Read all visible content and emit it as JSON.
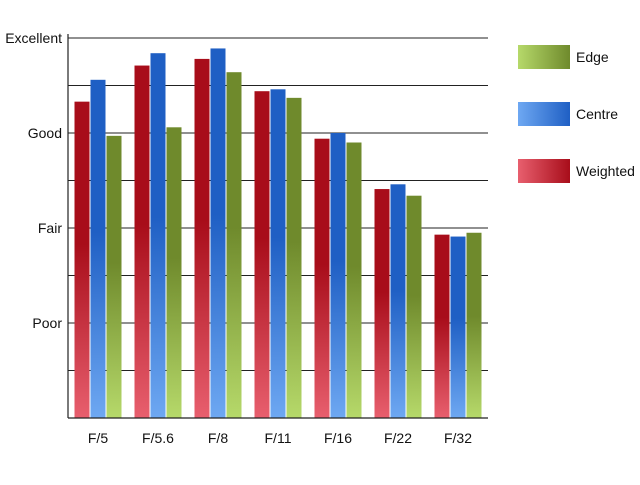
{
  "chart_data": {
    "type": "bar",
    "title": "",
    "xlabel": "",
    "ylabel": "",
    "categories": [
      "F/5",
      "F/5.6",
      "F/8",
      "F/11",
      "F/16",
      "F/22",
      "F/32"
    ],
    "y_tick_labels": [
      "Poor",
      "Fair",
      "Good",
      "Excellent"
    ],
    "y_tick_values": [
      1,
      2,
      3,
      4
    ],
    "ylim": [
      0,
      4
    ],
    "grid": true,
    "legend_position": "right",
    "series": [
      {
        "name": "Weighted",
        "color_dark": "#a80d1a",
        "color_light": "#e85f6e",
        "values": [
          3.33,
          3.71,
          3.78,
          3.44,
          2.94,
          2.41,
          1.93
        ]
      },
      {
        "name": "Centre",
        "color_dark": "#1f5fc4",
        "color_light": "#6ea8f2",
        "values": [
          3.56,
          3.84,
          3.89,
          3.46,
          3.0,
          2.46,
          1.91
        ]
      },
      {
        "name": "Edge",
        "color_dark": "#6f8a2c",
        "color_light": "#b6d96a",
        "values": [
          2.97,
          3.06,
          3.64,
          3.37,
          2.9,
          2.34,
          1.95
        ]
      }
    ],
    "legend_order": [
      "Edge",
      "Centre",
      "Weighted"
    ]
  }
}
